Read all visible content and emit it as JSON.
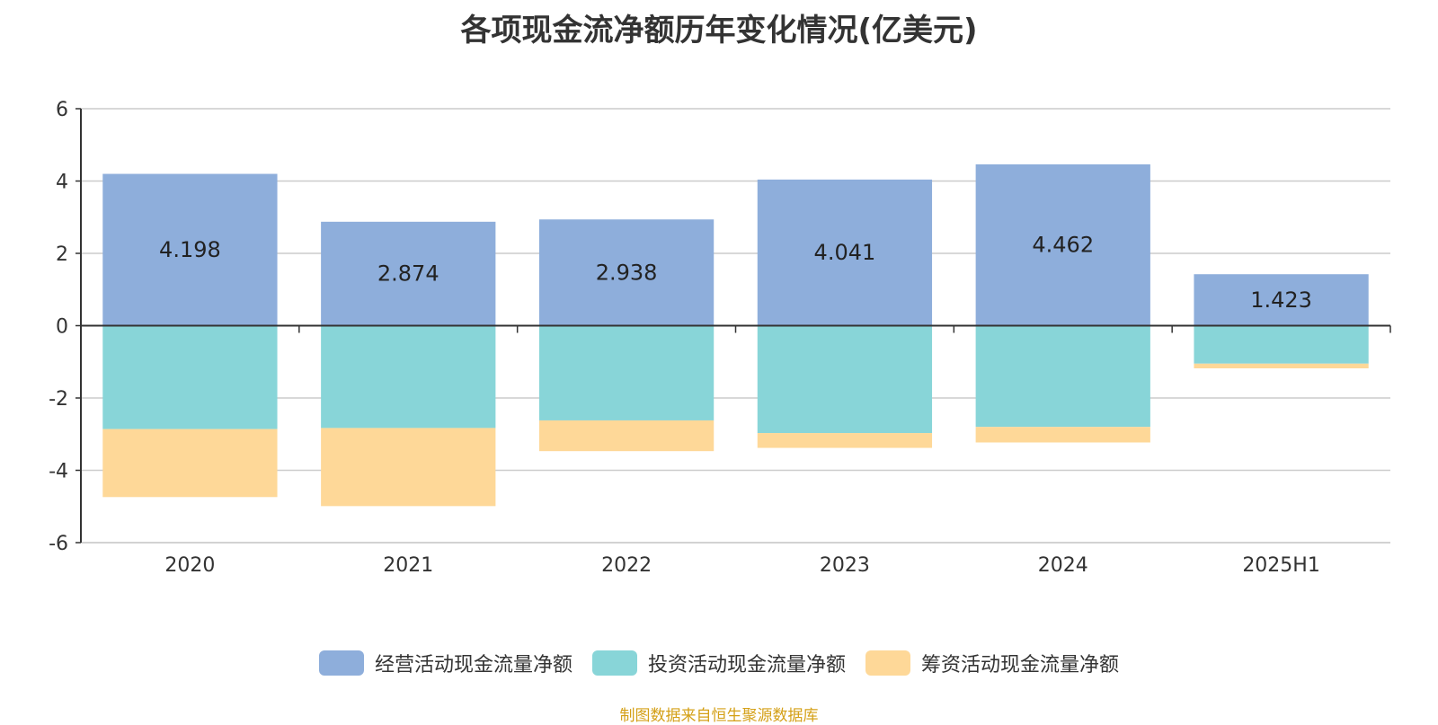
{
  "title": "各项现金流净额历年变化情况(亿美元)",
  "source": "制图数据来自恒生聚源数据库",
  "colors": {
    "operating": "#8eaedb",
    "investing": "#88d5d8",
    "financing": "#fed898",
    "grid": "#cccccc",
    "axis": "#333333",
    "text": "#333333",
    "source": "#d4a017"
  },
  "chart_data": {
    "type": "bar",
    "stacked": true,
    "categories": [
      "2020",
      "2021",
      "2022",
      "2023",
      "2024",
      "2025H1"
    ],
    "ylim": [
      -6,
      6
    ],
    "yticks": [
      "6",
      "4",
      "2",
      "0",
      "-2",
      "-4",
      "-6"
    ],
    "grid": true,
    "legend_position": "bottom-center",
    "series": [
      {
        "name": "经营活动现金流量净额",
        "values": [
          4.198,
          2.874,
          2.938,
          4.041,
          4.462,
          1.423
        ],
        "labels": [
          "4.198",
          "2.874",
          "2.938",
          "4.041",
          "4.462",
          "1.423"
        ]
      },
      {
        "name": "投资活动现金流量净额",
        "values": [
          -2.86,
          -2.83,
          -2.62,
          -2.97,
          -2.8,
          -1.05
        ]
      },
      {
        "name": "筹资活动现金流量净额",
        "values": [
          -1.88,
          -2.16,
          -0.85,
          -0.41,
          -0.43,
          -0.13
        ]
      }
    ]
  }
}
